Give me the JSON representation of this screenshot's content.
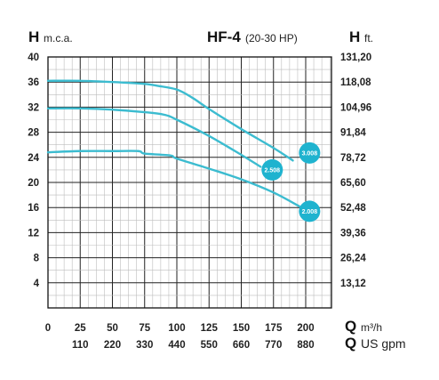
{
  "header": {
    "left_axis_letter": "H",
    "left_axis_unit": "m.c.a.",
    "title": "HF-4",
    "subtitle": "(20-30 HP)",
    "right_axis_letter": "H",
    "right_axis_unit": "ft."
  },
  "footer": {
    "q1_letter": "Q",
    "q1_unit": "m³/h",
    "q2_letter": "Q",
    "q2_unit": "US gpm"
  },
  "colors": {
    "curve": "#3cbcd0",
    "badge": "#1fb3cf",
    "grid": "#000000"
  },
  "chart_data": {
    "type": "line",
    "title": "HF-4 (20-30 HP)",
    "ylabel": "H m.c.a.",
    "y2label": "H ft.",
    "xlabel": "Q m³/h",
    "x2label": "Q US gpm",
    "xlim": [
      0,
      220
    ],
    "ylim": [
      0,
      40
    ],
    "grid": true,
    "x_ticks_m3h": [
      "0",
      "25",
      "50",
      "75",
      "100",
      "125",
      "150",
      "175",
      "200"
    ],
    "x_ticks_gpm": [
      "110",
      "220",
      "330",
      "440",
      "550",
      "660",
      "770",
      "880"
    ],
    "x_ticks_gpm_at_m3h": [
      25,
      50,
      75,
      100,
      125,
      150,
      175,
      200
    ],
    "y_ticks_m": [
      "4",
      "8",
      "12",
      "16",
      "20",
      "24",
      "28",
      "32",
      "36",
      "40"
    ],
    "y_ticks_ft": [
      "13,12",
      "26,24",
      "39,36",
      "52,48",
      "65,60",
      "78,72",
      "91,84",
      "104,96",
      "118,08",
      "131,20"
    ],
    "series": [
      {
        "name": "3.008",
        "x": [
          0,
          25,
          50,
          75,
          85,
          100,
          112,
          125,
          150,
          175,
          190
        ],
        "y": [
          36.2,
          36.2,
          36.0,
          35.7,
          35.4,
          34.8,
          33.5,
          31.7,
          28.5,
          25.5,
          23.5
        ]
      },
      {
        "name": "2.508",
        "x": [
          0,
          25,
          50,
          75,
          90,
          100,
          125,
          150,
          165
        ],
        "y": [
          31.8,
          31.8,
          31.6,
          31.2,
          30.8,
          30.0,
          27.4,
          24.4,
          22.5
        ]
      },
      {
        "name": "2.008",
        "x": [
          0,
          25,
          50,
          70,
          75,
          95,
          100,
          125,
          150,
          175,
          195
        ],
        "y": [
          24.8,
          25.0,
          25.0,
          25.0,
          24.6,
          24.3,
          23.8,
          22.2,
          20.5,
          18.4,
          16.2
        ]
      }
    ],
    "labels": [
      {
        "text": "3.008",
        "x": 203,
        "y": 24.7
      },
      {
        "text": "2.508",
        "x": 174,
        "y": 22.0
      },
      {
        "text": "2.008",
        "x": 203,
        "y": 15.4
      }
    ]
  }
}
